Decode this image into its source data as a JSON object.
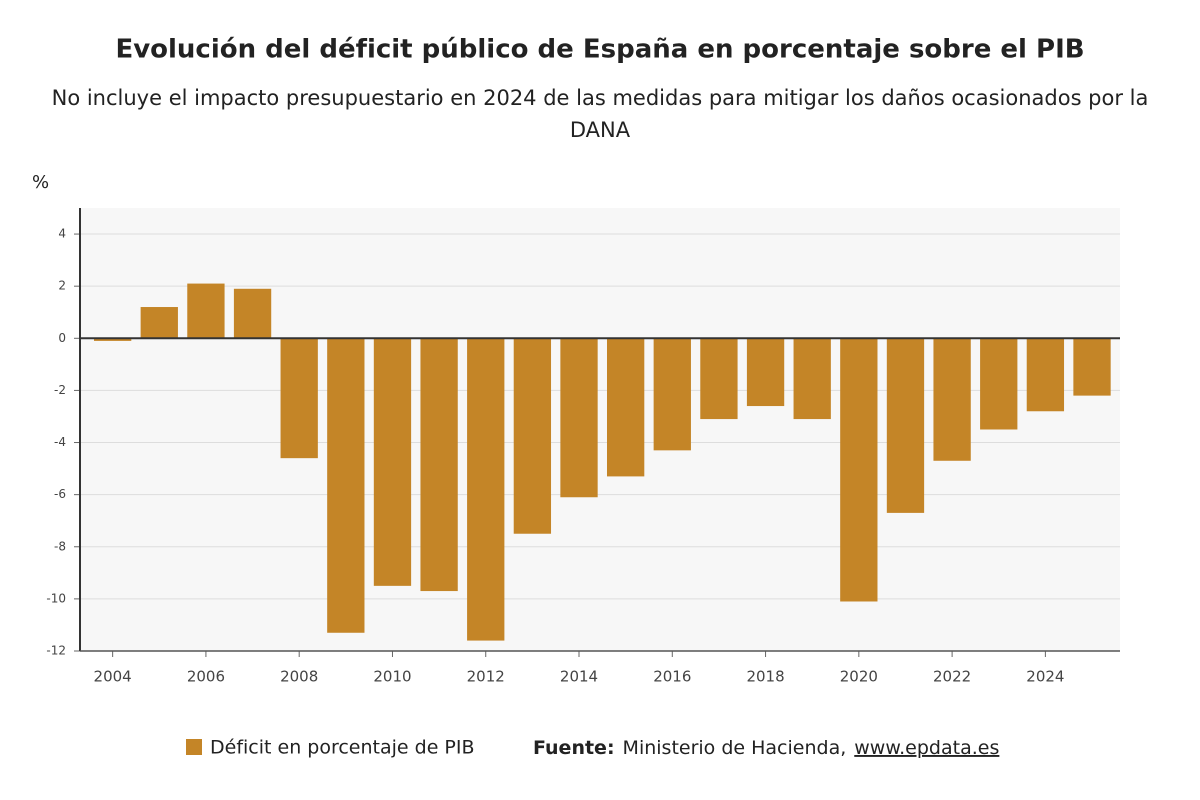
{
  "chart_data": {
    "type": "bar",
    "title": "Evolución del déficit público de España en porcentaje sobre el PIB",
    "subtitle": "No incluye el impacto presupuestario en 2024 de las medidas para mitigar los daños ocasionados por la DANA",
    "y_label": "%",
    "x": [
      2004,
      2005,
      2006,
      2007,
      2008,
      2009,
      2010,
      2011,
      2012,
      2013,
      2014,
      2015,
      2016,
      2017,
      2018,
      2019,
      2020,
      2021,
      2022,
      2023,
      2024,
      2025
    ],
    "series": [
      {
        "name": "Déficit en porcentaje de PIB",
        "color": "#c48527",
        "values": [
          -0.1,
          1.2,
          2.1,
          1.9,
          -4.6,
          -11.3,
          -9.5,
          -9.7,
          -11.6,
          -7.5,
          -6.1,
          -5.3,
          -4.3,
          -3.1,
          -2.6,
          -3.1,
          -10.1,
          -6.7,
          -4.7,
          -3.5,
          -2.8,
          -2.2
        ]
      }
    ],
    "xlim": [
      2003.3,
      2025.6
    ],
    "xticks": [
      2004,
      2006,
      2008,
      2010,
      2012,
      2014,
      2016,
      2018,
      2020,
      2022,
      2024
    ],
    "ylim": [
      -12,
      5
    ],
    "yticks": [
      -12,
      -10,
      -8,
      -6,
      -4,
      -2,
      0,
      2,
      4
    ],
    "grid": true,
    "source_label": "Fuente:",
    "source": "Ministerio de Hacienda,",
    "source_url": "www.epdata.es"
  }
}
